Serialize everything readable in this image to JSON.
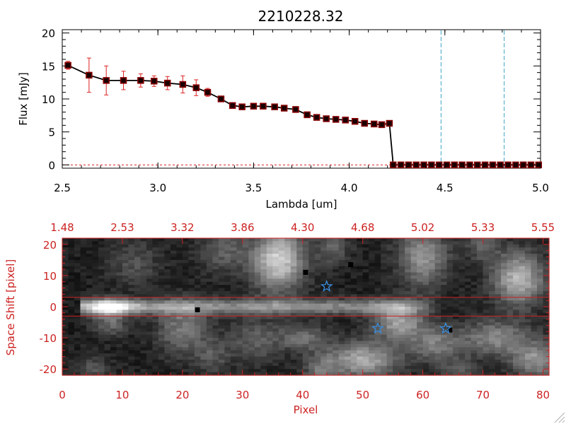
{
  "title": "2210228.32",
  "colors": {
    "frame_top": "#000000",
    "data_line": "#000000",
    "marker_fill": "#8b0000",
    "error_bars": "#dd2222",
    "cutoff_line": "#3ea6c8",
    "red_axes": "#cc2222",
    "star_blue": "#3a8fe0"
  },
  "chart_data": [
    {
      "type": "line",
      "xlabel": "Lambda [um]",
      "ylabel": "Flux [mJy]",
      "xlim": [
        2.5,
        5.0
      ],
      "ylim": [
        -0.5,
        20.5
      ],
      "x_ticks": [
        "2.5",
        "3.0",
        "3.5",
        "4.0",
        "4.5",
        "5.0"
      ],
      "x_tick_values": [
        2.5,
        3.0,
        3.5,
        4.0,
        4.5,
        5.0
      ],
      "y_ticks": [
        "0",
        "5",
        "10",
        "15",
        "20"
      ],
      "y_tick_values": [
        0,
        5,
        10,
        15,
        20
      ],
      "vertical_lines": [
        4.48,
        4.81
      ],
      "dashed_zero_line": true,
      "series": [
        {
          "x": [
            2.53,
            2.64,
            2.73,
            2.82,
            2.91,
            2.98,
            3.05,
            3.13,
            3.2,
            3.26,
            3.33,
            3.39,
            3.44,
            3.5,
            3.55,
            3.61,
            3.66,
            3.72,
            3.78,
            3.83,
            3.88,
            3.93,
            3.98,
            4.03,
            4.08,
            4.13,
            4.17,
            4.21,
            4.23,
            4.27,
            4.31,
            4.35,
            4.39,
            4.43,
            4.47,
            4.51,
            4.55,
            4.59,
            4.63,
            4.67,
            4.71,
            4.75,
            4.79,
            4.83,
            4.87,
            4.91,
            4.95,
            4.99
          ],
          "y": [
            15.1,
            13.6,
            12.8,
            12.8,
            12.8,
            12.7,
            12.4,
            12.2,
            11.7,
            11.0,
            10.0,
            9.0,
            8.8,
            8.9,
            8.9,
            8.8,
            8.6,
            8.4,
            7.6,
            7.2,
            7.0,
            6.9,
            6.8,
            6.6,
            6.3,
            6.2,
            6.1,
            6.3,
            0,
            0,
            0,
            0,
            0,
            0,
            0,
            0,
            0,
            0,
            0,
            0,
            0,
            0,
            0,
            0,
            0,
            0,
            0,
            0
          ],
          "err": [
            0.6,
            2.6,
            2.2,
            1.4,
            1.0,
            0.8,
            1.0,
            1.3,
            1.2,
            0.6,
            0.4,
            0.3,
            0.2,
            0.2,
            0.2,
            0.2,
            0.2,
            0.2,
            0.2,
            0.2,
            0.2,
            0.2,
            0.2,
            0.2,
            0.2,
            0.2,
            0.2,
            0.2,
            0,
            0,
            0,
            0,
            0,
            0,
            0,
            0,
            0,
            0,
            0,
            0,
            0,
            0,
            0,
            0,
            0,
            0,
            0,
            0
          ]
        }
      ]
    },
    {
      "type": "heatmap",
      "xlabel": "Pixel",
      "ylabel": "Space Shift [pixel]",
      "xlim": [
        0,
        81
      ],
      "ylim": [
        -22,
        22
      ],
      "x_ticks": [
        "0",
        "10",
        "20",
        "30",
        "40",
        "50",
        "60",
        "70",
        "80"
      ],
      "x_tick_values": [
        0,
        10,
        20,
        30,
        40,
        50,
        60,
        70,
        80
      ],
      "y_ticks": [
        "-20",
        "-10",
        "0",
        "10",
        "20"
      ],
      "y_tick_values": [
        -20,
        -10,
        0,
        10,
        20
      ],
      "top_ticks": [
        "1.48",
        "2.53",
        "3.32",
        "3.86",
        "4.30",
        "4.68",
        "5.02",
        "5.33",
        "5.55"
      ],
      "top_tick_values": [
        0,
        10,
        20,
        30,
        40,
        50,
        60,
        70,
        80
      ],
      "horizontal_lines": [
        3,
        -3
      ],
      "stars": [
        [
          44,
          6.5
        ],
        [
          52.5,
          -7
        ],
        [
          63.8,
          -7
        ]
      ],
      "dark_markers": [
        [
          22.5,
          -1
        ],
        [
          40.5,
          11
        ],
        [
          48,
          13.5
        ],
        [
          64.5,
          -7.5
        ]
      ],
      "trace": {
        "x_start": 3,
        "x_end": 60,
        "peak_x": 8,
        "y": 0
      },
      "blobs": [
        [
          36,
          15,
          3,
          7,
          0.7
        ],
        [
          60,
          16,
          3,
          7,
          0.45
        ],
        [
          76,
          9,
          3,
          6,
          0.6
        ],
        [
          56,
          -5,
          3,
          4,
          0.5
        ],
        [
          50,
          -17,
          4,
          4,
          0.55
        ],
        [
          72,
          -10,
          4,
          4,
          0.4
        ],
        [
          79,
          -17,
          3,
          4,
          0.45
        ],
        [
          62,
          -12,
          3,
          4,
          0.35
        ],
        [
          20,
          -7,
          3,
          6,
          0.35
        ],
        [
          8,
          -5,
          2,
          3,
          0.3
        ],
        [
          32,
          -11,
          3,
          5,
          0.25
        ],
        [
          40,
          -10,
          3,
          3,
          0.3
        ],
        [
          12,
          14,
          3,
          5,
          0.2
        ],
        [
          27,
          18,
          3,
          5,
          0.25
        ],
        [
          45,
          19,
          2,
          4,
          0.25
        ],
        [
          70,
          20,
          2,
          4,
          0.25
        ],
        [
          43,
          -21,
          2,
          4,
          0.3
        ],
        [
          5,
          -20,
          2,
          3,
          0.2
        ],
        [
          25,
          -16,
          2,
          4,
          0.2
        ],
        [
          66,
          -21,
          2,
          3,
          0.25
        ]
      ]
    }
  ]
}
